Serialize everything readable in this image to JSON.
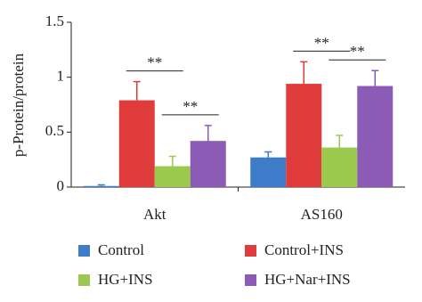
{
  "chart_data": {
    "type": "bar",
    "y_label": "p-Protein/protein",
    "categories": [
      "Akt",
      "AS160"
    ],
    "series": [
      {
        "name": "Control",
        "color": "#3d7cc9",
        "values": [
          0.01,
          0.27
        ],
        "errors": [
          0.01,
          0.05
        ]
      },
      {
        "name": "Control+INS",
        "color": "#e03c3c",
        "values": [
          0.79,
          0.94
        ],
        "errors": [
          0.17,
          0.2
        ]
      },
      {
        "name": "HG+INS",
        "color": "#9bc94e",
        "values": [
          0.19,
          0.36
        ],
        "errors": [
          0.09,
          0.11
        ]
      },
      {
        "name": "HG+Nar+INS",
        "color": "#8b5bb5",
        "values": [
          0.42,
          0.92
        ],
        "errors": [
          0.14,
          0.14
        ]
      }
    ],
    "annotations": [
      "**",
      "**",
      "**",
      "**"
    ],
    "ylim": [
      0,
      1.5
    ],
    "yticks": [
      0,
      0.5,
      1,
      1.5
    ],
    "grid": false
  }
}
